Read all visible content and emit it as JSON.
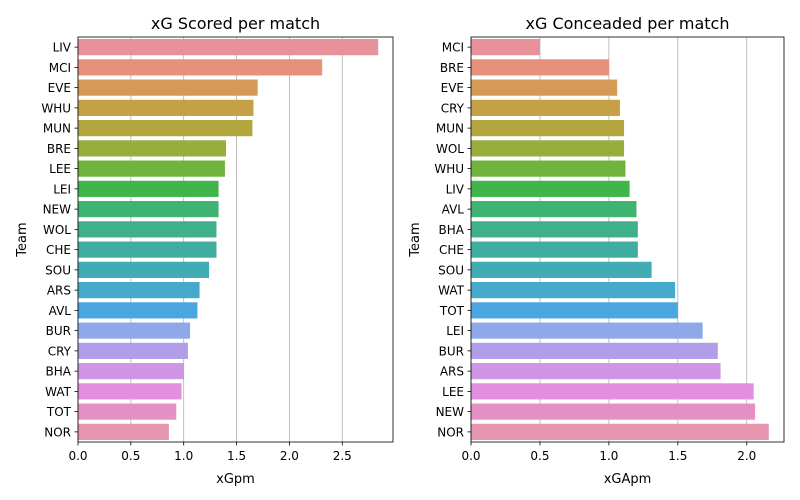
{
  "chart_data": [
    {
      "type": "bar",
      "orientation": "horizontal",
      "title": "xG Scored per match",
      "xlabel": "xGpm",
      "ylabel": "Team",
      "xlim": [
        0,
        2.98
      ],
      "xticks": [
        0.0,
        0.5,
        1.0,
        1.5,
        2.0,
        2.5
      ],
      "xtick_labels": [
        "0.0",
        "0.5",
        "1.0",
        "1.5",
        "2.0",
        "2.5"
      ],
      "grid": "vertical",
      "categories": [
        "LIV",
        "MCI",
        "EVE",
        "WHU",
        "MUN",
        "BRE",
        "LEE",
        "LEI",
        "NEW",
        "WOL",
        "CHE",
        "SOU",
        "ARS",
        "AVL",
        "BUR",
        "CRY",
        "BHA",
        "WAT",
        "TOT",
        "NOR"
      ],
      "values": [
        2.84,
        2.31,
        1.7,
        1.66,
        1.65,
        1.4,
        1.39,
        1.33,
        1.33,
        1.31,
        1.31,
        1.24,
        1.15,
        1.13,
        1.06,
        1.04,
        1.0,
        0.98,
        0.93,
        0.86
      ],
      "colors": [
        "#e8919b",
        "#e69179",
        "#d69a57",
        "#c5a044",
        "#b4a63e",
        "#97ad3c",
        "#6fb23c",
        "#3fb54c",
        "#3fb371",
        "#3fb089",
        "#3faea0",
        "#42acb4",
        "#44a9cb",
        "#4ba5e0",
        "#8ea9e8",
        "#b09fe8",
        "#cf96e6",
        "#e28fdf",
        "#e591c6",
        "#e896b0"
      ]
    },
    {
      "type": "bar",
      "orientation": "horizontal",
      "title": "xG Conceaded per match",
      "xlabel": "xGApm",
      "ylabel": "Team",
      "xlim": [
        0,
        2.27
      ],
      "xticks": [
        0.0,
        0.5,
        1.0,
        1.5,
        2.0
      ],
      "xtick_labels": [
        "0.0",
        "0.5",
        "1.0",
        "1.5",
        "2.0"
      ],
      "grid": "vertical",
      "categories": [
        "MCI",
        "BRE",
        "EVE",
        "CRY",
        "MUN",
        "WOL",
        "WHU",
        "LIV",
        "AVL",
        "BHA",
        "CHE",
        "SOU",
        "WAT",
        "TOT",
        "LEI",
        "BUR",
        "ARS",
        "LEE",
        "NEW",
        "NOR"
      ],
      "values": [
        0.5,
        1.0,
        1.06,
        1.08,
        1.11,
        1.11,
        1.12,
        1.15,
        1.2,
        1.21,
        1.21,
        1.31,
        1.48,
        1.5,
        1.68,
        1.79,
        1.81,
        2.05,
        2.06,
        2.16
      ],
      "colors": [
        "#e8919b",
        "#e69179",
        "#d69a57",
        "#c5a044",
        "#b4a63e",
        "#97ad3c",
        "#6fb23c",
        "#3fb54c",
        "#3fb371",
        "#3fb089",
        "#3faea0",
        "#42acb4",
        "#44a9cb",
        "#4ba5e0",
        "#8ea9e8",
        "#b09fe8",
        "#cf96e6",
        "#e28fdf",
        "#e591c6",
        "#e896b0"
      ]
    }
  ]
}
